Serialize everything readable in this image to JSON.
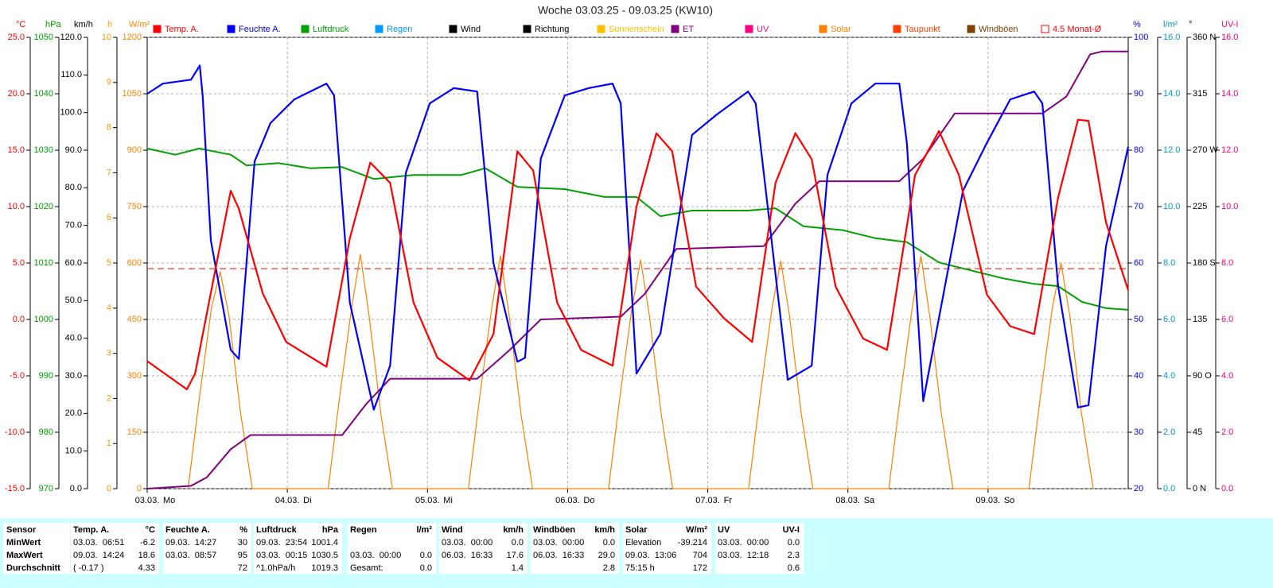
{
  "chart_data": {
    "type": "line",
    "title": "Woche 03.03.25 - 09.03.25 (KW10)",
    "xlim": [
      0,
      168
    ],
    "xticks": [
      {
        "value": 0,
        "label": "03.03."
      },
      {
        "value": 24,
        "label": "04.03."
      },
      {
        "value": 48,
        "label": "05.03."
      },
      {
        "value": 72,
        "label": "06.03."
      },
      {
        "value": 96,
        "label": "07.03."
      },
      {
        "value": 120,
        "label": "08.03."
      },
      {
        "value": 144,
        "label": "09.03."
      }
    ],
    "weekdays": [
      "Mo",
      "Di",
      "Mi",
      "Do",
      "Fr",
      "Sa",
      "So"
    ],
    "grid": true,
    "axes": [
      {
        "unit": "°C",
        "side": "left",
        "color": "#ff0000",
        "lim": [
          -15,
          25
        ],
        "ticks": [
          {
            "value": -15,
            "label": "-15.0"
          },
          {
            "value": -10,
            "label": "-10.0"
          },
          {
            "value": -5,
            "label": "-5.0"
          },
          {
            "value": 0,
            "label": "0.0"
          },
          {
            "value": 5,
            "label": "5.0"
          },
          {
            "value": 10,
            "label": "10.0"
          },
          {
            "value": 15,
            "label": "15.0"
          },
          {
            "value": 20,
            "label": "20.0"
          },
          {
            "value": 25,
            "label": "25.0"
          }
        ]
      },
      {
        "unit": "hPa",
        "side": "left",
        "color": "#00a000",
        "lim": [
          970,
          1050
        ],
        "ticks": [
          970,
          980,
          990,
          1000,
          1010,
          1020,
          1030,
          1040,
          1050
        ]
      },
      {
        "unit": "km/h",
        "side": "left",
        "color": "#000000",
        "lim": [
          0,
          120
        ],
        "ticks": [
          {
            "value": 0,
            "label": "0.0"
          },
          {
            "value": 10,
            "label": "10.0"
          },
          {
            "value": 20,
            "label": "20.0"
          },
          {
            "value": 30,
            "label": "30.0"
          },
          {
            "value": 40,
            "label": "40.0"
          },
          {
            "value": 50,
            "label": "50.0"
          },
          {
            "value": 60,
            "label": "60.0"
          },
          {
            "value": 70,
            "label": "70.0"
          },
          {
            "value": 80,
            "label": "80.0"
          },
          {
            "value": 90,
            "label": "90.0"
          },
          {
            "value": 100,
            "label": "100.0"
          },
          {
            "value": 110,
            "label": "110.0"
          },
          {
            "value": 120,
            "label": "120.0"
          }
        ]
      },
      {
        "unit": "h",
        "side": "left",
        "color": "#ff9900",
        "lim": [
          0,
          10
        ],
        "ticks": [
          0,
          1,
          2,
          3,
          4,
          5,
          6,
          7,
          8,
          9,
          10
        ]
      },
      {
        "unit": "W/m²",
        "side": "left",
        "color": "#ff8000",
        "lim": [
          0,
          1200
        ],
        "ticks": [
          0,
          150,
          300,
          450,
          600,
          750,
          900,
          1050,
          1200
        ]
      },
      {
        "unit": "%",
        "side": "right",
        "color": "#0000ff",
        "lim": [
          20,
          100
        ],
        "ticks": [
          20,
          30,
          40,
          50,
          60,
          70,
          80,
          90,
          100
        ]
      },
      {
        "unit": "l/m²",
        "side": "right",
        "color": "#0099cc",
        "lim": [
          0,
          16
        ],
        "ticks": [
          {
            "value": 0,
            "label": "0.0"
          },
          {
            "value": 2,
            "label": "2.0"
          },
          {
            "value": 4,
            "label": "4.0"
          },
          {
            "value": 6,
            "label": "6.0"
          },
          {
            "value": 8,
            "label": "8.0"
          },
          {
            "value": 10,
            "label": "10.0"
          },
          {
            "value": 12,
            "label": "12.0"
          },
          {
            "value": 14,
            "label": "14.0"
          },
          {
            "value": 16,
            "label": "16.0"
          }
        ]
      },
      {
        "unit": "°",
        "side": "right",
        "color": "#000000",
        "lim": [
          0,
          360
        ],
        "ticks": [
          {
            "value": 0,
            "label": "0 N"
          },
          45,
          {
            "value": 90,
            "label": "90 O"
          },
          135,
          {
            "value": 180,
            "label": "180 S"
          },
          225,
          {
            "value": 270,
            "label": "270 W"
          },
          315,
          {
            "value": 360,
            "label": "360 N"
          }
        ]
      },
      {
        "unit": "UV-I",
        "side": "right",
        "color": "#ff0080",
        "lim": [
          0,
          16
        ],
        "ticks": [
          {
            "value": 0,
            "label": "0.0"
          },
          {
            "value": 2,
            "label": "2.0"
          },
          {
            "value": 4,
            "label": "4.0"
          },
          {
            "value": 6,
            "label": "6.0"
          },
          {
            "value": 8,
            "label": "8.0"
          },
          {
            "value": 10,
            "label": "10.0"
          },
          {
            "value": 12,
            "label": "12.0"
          },
          {
            "value": 14,
            "label": "14.0"
          },
          {
            "value": 16,
            "label": "16.0"
          }
        ]
      }
    ],
    "legend": [
      {
        "name": "Temp. A.",
        "color": "#ff0000"
      },
      {
        "name": "Feuchte A.",
        "color": "#0000ff"
      },
      {
        "name": "Luftdruck",
        "color": "#00a000"
      },
      {
        "name": "Regen",
        "color": "#0099ff"
      },
      {
        "name": "Wind",
        "color": "#000000"
      },
      {
        "name": "Richtung",
        "color": "#000000"
      },
      {
        "name": "Sonnenschein",
        "color": "#ffc000"
      },
      {
        "name": "ET",
        "color": "#800080"
      },
      {
        "name": "UV",
        "color": "#ff0080"
      },
      {
        "name": "Solar",
        "color": "#ff8000"
      },
      {
        "name": "Taupunkt",
        "color": "#ff4000"
      },
      {
        "name": "Windböen",
        "color": "#804000"
      },
      {
        "name": "4.5 Monat-Ø",
        "color": "#ff0000",
        "outline": true
      }
    ],
    "series": [
      {
        "legend": 9,
        "axis": 4,
        "width": 1.2,
        "x": [
          7,
          9,
          11,
          12.5,
          14,
          16,
          18,
          31,
          33,
          35,
          36.5,
          38,
          40,
          42,
          55,
          57,
          59,
          60.5,
          62,
          64,
          66,
          79,
          81,
          83,
          84.5,
          86,
          88,
          90,
          103,
          105,
          107,
          108.5,
          110,
          112,
          114,
          127,
          129,
          131,
          132.5,
          134,
          136,
          138,
          151,
          153,
          155,
          156.5,
          158,
          160,
          162
        ],
        "y": [
          0,
          250,
          480,
          577,
          460,
          200,
          0,
          0,
          250,
          480,
          623,
          460,
          200,
          0,
          0,
          250,
          480,
          619,
          460,
          200,
          0,
          0,
          250,
          480,
          608,
          460,
          200,
          0,
          0,
          250,
          480,
          606,
          460,
          200,
          0,
          0,
          250,
          480,
          619,
          460,
          200,
          0,
          0,
          250,
          480,
          600,
          460,
          200,
          0
        ]
      },
      {
        "legend": 2,
        "axis": 1,
        "width": 2,
        "x": [
          0,
          4.8,
          8.9,
          14.3,
          17,
          22.5,
          27.9,
          33.4,
          38.8,
          45.6,
          53.8,
          57.9,
          63.4,
          71.5,
          78.3,
          83.8,
          87.9,
          93.3,
          102.9,
          107.6,
          112.4,
          119.2,
          124.7,
          130.1,
          135.6,
          141,
          146.5,
          151.9,
          156,
          160.1,
          164.2,
          168
        ],
        "y": [
          1030.3,
          1029.2,
          1030.3,
          1029.2,
          1027.3,
          1027.7,
          1026.8,
          1027.0,
          1024.9,
          1025.6,
          1025.6,
          1026.8,
          1023.5,
          1023.1,
          1021.7,
          1021.7,
          1018.3,
          1019.3,
          1019.3,
          1019.7,
          1016.5,
          1015.8,
          1014.4,
          1013.7,
          1010.1,
          1008.7,
          1007.3,
          1006.3,
          1005.9,
          1003.1,
          1002.0,
          1001.7
        ]
      },
      {
        "legend": 7,
        "axis": 6,
        "width": 2,
        "x": [
          0,
          7.5,
          10.2,
          14.3,
          17.7,
          33.4,
          37.5,
          41.6,
          56.5,
          62,
          67.4,
          81.1,
          85.2,
          90.6,
          105.6,
          111,
          115.1,
          128.8,
          132.9,
          138.3,
          153.3,
          157.4,
          161.5,
          163.5,
          168
        ],
        "y": [
          0,
          0.1,
          0.4,
          1.4,
          1.9,
          1.9,
          3.0,
          3.9,
          3.9,
          4.9,
          6.0,
          6.1,
          6.9,
          8.5,
          8.6,
          10.1,
          10.9,
          10.9,
          11.7,
          13.3,
          13.3,
          13.9,
          15.4,
          15.5,
          15.5
        ]
      },
      {
        "legend": 1,
        "axis": 5,
        "width": 2.2,
        "x": [
          0,
          2.7,
          7.5,
          9,
          9.5,
          10.9,
          14.3,
          15.7,
          18.4,
          21.1,
          25.2,
          30.7,
          32,
          34.7,
          38.8,
          41.6,
          44.3,
          48.4,
          52.5,
          56.5,
          59.3,
          63.4,
          64.7,
          67.4,
          71.5,
          75.6,
          79.7,
          81.1,
          83.8,
          87.9,
          93.3,
          97.4,
          102.9,
          104.2,
          109.7,
          113.8,
          116.5,
          120.6,
          124.7,
          128.8,
          130.1,
          132.9,
          135.6,
          139.7,
          143.8,
          147.8,
          151.9,
          153.3,
          156,
          159.4,
          161.2,
          164.2,
          168
        ],
        "y": [
          90,
          91.8,
          92.5,
          95,
          89.7,
          64,
          44.6,
          43,
          78,
          84.8,
          89,
          91.8,
          89.7,
          53,
          34,
          41.8,
          76,
          88.3,
          91,
          90.4,
          60,
          42.5,
          43.2,
          78.5,
          89.7,
          91,
          91.8,
          88.3,
          40.4,
          47.5,
          82.7,
          86.2,
          90.4,
          88.3,
          39.3,
          41.8,
          75.6,
          88.3,
          91.8,
          91.8,
          81.3,
          35.5,
          50.3,
          72.8,
          81.3,
          89,
          90.4,
          88.3,
          55.9,
          34.4,
          34.8,
          63,
          80.6
        ]
      },
      {
        "legend": 0,
        "axis": 0,
        "width": 2.2,
        "x": [
          0,
          6.8,
          8.2,
          14.3,
          15.7,
          19.8,
          23.8,
          30.7,
          34.7,
          38.2,
          41.6,
          45.6,
          49.7,
          55.2,
          59.3,
          63.4,
          66.1,
          70.2,
          74.3,
          79.7,
          83.8,
          87.2,
          89.9,
          94,
          98.8,
          103.6,
          107.6,
          111,
          113.8,
          117.9,
          122.6,
          126.7,
          131.5,
          135.6,
          139,
          143.8,
          147.8,
          151.9,
          156,
          159.4,
          161.2,
          164.2,
          168
        ],
        "y": [
          -3.7,
          -6.2,
          -4.8,
          11.4,
          9.8,
          2.3,
          -2.0,
          -4.2,
          7.2,
          13.9,
          12.1,
          1.5,
          -3.4,
          -5.4,
          -1.3,
          14.9,
          13.2,
          1.5,
          -2.7,
          -4.1,
          10.0,
          16.5,
          14.9,
          2.9,
          0.1,
          -2.0,
          12.1,
          16.5,
          14.2,
          2.9,
          -1.7,
          -2.7,
          12.8,
          16.7,
          12.8,
          2.2,
          -0.6,
          -1.3,
          10.8,
          17.7,
          17.6,
          8.6,
          2.6
        ]
      }
    ],
    "average_line": {
      "legend": 12,
      "axis": 0,
      "value": 4.5
    },
    "table": {
      "header": "Sensor",
      "row_labels": [
        "MinWert",
        "MaxWert",
        "Durchschnitt"
      ],
      "columns": [
        {
          "name": "Temp. A.",
          "unit": "°C",
          "cells": [
            [
              "03.03.  06:51",
              "-6.2"
            ],
            [
              "09.03.  14:24",
              "18.6"
            ],
            [
              "( -0.17 )",
              "4.33"
            ]
          ]
        },
        {
          "name": "Feuchte A.",
          "unit": "%",
          "cells": [
            [
              "09.03.  14:27",
              "30"
            ],
            [
              "03.03.  08:57",
              "95"
            ],
            [
              null,
              "72"
            ]
          ]
        },
        {
          "name": "Luftdruck",
          "unit": "hPa",
          "cells": [
            [
              "09.03.  23:54",
              "1001.4"
            ],
            [
              "03.03.  00:15",
              "1030.5"
            ],
            [
              "^1.0hPa/h",
              "1019.3"
            ]
          ]
        },
        {
          "name": "Regen",
          "unit": "l/m²",
          "cells": [
            [
              null,
              null
            ],
            [
              "03.03.  00:00",
              "0.0"
            ],
            [
              "Gesamt:",
              "0.0"
            ]
          ]
        },
        {
          "name": "Wind",
          "unit": "km/h",
          "cells": [
            [
              "03.03.  00:00",
              "0.0"
            ],
            [
              "06.03.  16:33",
              "17.6"
            ],
            [
              null,
              "1.4"
            ]
          ]
        },
        {
          "name": "Windböen",
          "unit": "km/h",
          "cells": [
            [
              "03.03.  00:00",
              "0.0"
            ],
            [
              "06.03.  16:33",
              "29.0"
            ],
            [
              null,
              "2.8"
            ]
          ]
        },
        {
          "name": "Solar",
          "unit": "W/m²",
          "cells": [
            [
              "Elevation",
              "-39.214"
            ],
            [
              "09.03.  13:06",
              "704"
            ],
            [
              "75:15 h",
              "172"
            ]
          ]
        },
        {
          "name": "UV",
          "unit": "UV-I",
          "cells": [
            [
              "03.03.  00:00",
              "0.0"
            ],
            [
              "03.03.  12:18",
              "2.3"
            ],
            [
              null,
              "0.6"
            ]
          ]
        }
      ]
    }
  }
}
